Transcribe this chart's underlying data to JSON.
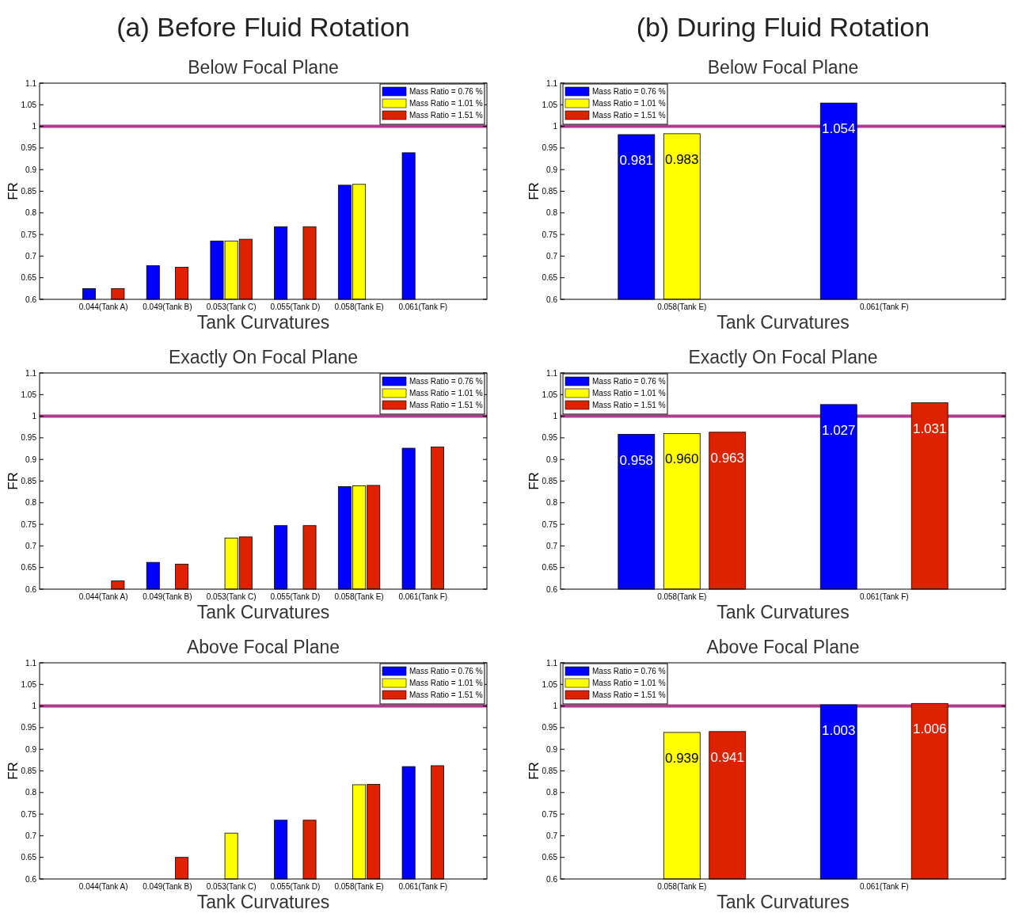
{
  "chart_data": [
    {
      "type": "bar",
      "title": "(a) Before Fluid Rotation",
      "subtitle": "Below Focal Plane",
      "xlabel": "Tank Curvatures",
      "ylabel": "FR",
      "categories": [
        "0.044(Tank A)",
        "0.049(Tank B)",
        "0.053(Tank C)",
        "0.055(Tank D)",
        "0.058(Tank E)",
        "0.061(Tank F)"
      ],
      "series": [
        {
          "name": "Mass Ratio = 0.76 %",
          "color": "#0000ff",
          "values": [
            0.625,
            0.678,
            0.735,
            0.768,
            0.864,
            0.939
          ]
        },
        {
          "name": "Mass Ratio = 1.01 %",
          "color": "#ffff00",
          "values": [
            null,
            null,
            0.735,
            null,
            0.866,
            null
          ]
        },
        {
          "name": "Mass Ratio = 1.51 %",
          "color": "#dd2200",
          "values": [
            0.625,
            0.674,
            0.739,
            0.768,
            null,
            null
          ]
        }
      ],
      "ylim": [
        0.6,
        1.1
      ],
      "yticks": [
        0.6,
        0.65,
        0.7,
        0.75,
        0.8,
        0.85,
        0.9,
        0.95,
        1,
        1.05,
        1.1
      ],
      "grid": false,
      "legend": "top right",
      "ref_lines": [
        {
          "axis": "y",
          "value": 1,
          "color": "#b03a8c"
        }
      ]
    },
    {
      "type": "bar",
      "title": "(b) During Fluid Rotation",
      "subtitle": "Below Focal Plane",
      "xlabel": "Tank Curvatures",
      "ylabel": "FR",
      "categories": [
        "0.058(Tank E)",
        "0.061(Tank F)"
      ],
      "series": [
        {
          "name": "Mass Ratio = 0.76 %",
          "color": "#0000ff",
          "values": [
            0.981,
            1.054
          ]
        },
        {
          "name": "Mass Ratio = 1.01 %",
          "color": "#ffff00",
          "values": [
            0.983,
            null
          ]
        },
        {
          "name": "Mass Ratio = 1.51 %",
          "color": "#dd2200",
          "values": [
            null,
            null
          ]
        }
      ],
      "ylim": [
        0.6,
        1.1
      ],
      "yticks": [
        0.6,
        0.65,
        0.7,
        0.75,
        0.8,
        0.85,
        0.9,
        0.95,
        1,
        1.05,
        1.1
      ],
      "grid": false,
      "legend": "top left",
      "data_labels": true,
      "ref_lines": [
        {
          "axis": "y",
          "value": 1,
          "color": "#b03a8c"
        }
      ]
    },
    {
      "type": "bar",
      "title": "Exactly On Focal Plane",
      "xlabel": "Tank Curvatures",
      "ylabel": "FR",
      "categories": [
        "0.044(Tank A)",
        "0.049(Tank B)",
        "0.053(Tank C)",
        "0.055(Tank D)",
        "0.058(Tank E)",
        "0.061(Tank F)"
      ],
      "series": [
        {
          "name": "Mass Ratio = 0.76 %",
          "color": "#0000ff",
          "values": [
            null,
            0.662,
            null,
            0.747,
            0.837,
            0.926
          ]
        },
        {
          "name": "Mass Ratio = 1.01 %",
          "color": "#ffff00",
          "values": [
            null,
            null,
            0.718,
            null,
            0.839,
            null
          ]
        },
        {
          "name": "Mass Ratio = 1.51 %",
          "color": "#dd2200",
          "values": [
            0.619,
            0.658,
            0.721,
            0.747,
            0.84,
            0.929
          ]
        }
      ],
      "ylim": [
        0.6,
        1.1
      ],
      "yticks": [
        0.6,
        0.65,
        0.7,
        0.75,
        0.8,
        0.85,
        0.9,
        0.95,
        1,
        1.05,
        1.1
      ],
      "grid": false,
      "legend": "top right",
      "ref_lines": [
        {
          "axis": "y",
          "value": 1,
          "color": "#b03a8c"
        }
      ]
    },
    {
      "type": "bar",
      "title": "Exactly On Focal Plane",
      "xlabel": "Tank Curvatures",
      "ylabel": "FR",
      "categories": [
        "0.058(Tank E)",
        "0.061(Tank F)"
      ],
      "series": [
        {
          "name": "Mass Ratio = 0.76 %",
          "color": "#0000ff",
          "values": [
            0.958,
            1.027
          ]
        },
        {
          "name": "Mass Ratio = 1.01 %",
          "color": "#ffff00",
          "values": [
            0.96,
            null
          ]
        },
        {
          "name": "Mass Ratio = 1.51 %",
          "color": "#dd2200",
          "values": [
            0.963,
            1.031
          ]
        }
      ],
      "value_labels": [
        [
          "0.958",
          "1.027"
        ],
        [
          "0.960",
          null
        ],
        [
          "0.963",
          "1.031"
        ]
      ],
      "ylim": [
        0.6,
        1.1
      ],
      "yticks": [
        0.6,
        0.65,
        0.7,
        0.75,
        0.8,
        0.85,
        0.9,
        0.95,
        1,
        1.05,
        1.1
      ],
      "grid": false,
      "legend": "top left",
      "ref_lines": [
        {
          "axis": "y",
          "value": 1,
          "color": "#b03a8c"
        }
      ]
    },
    {
      "type": "bar",
      "title": "Above Focal Plane",
      "xlabel": "Tank Curvatures",
      "ylabel": "FR",
      "categories": [
        "0.044(Tank A)",
        "0.049(Tank B)",
        "0.053(Tank C)",
        "0.055(Tank D)",
        "0.058(Tank E)",
        "0.061(Tank F)"
      ],
      "series": [
        {
          "name": "Mass Ratio = 0.76 %",
          "color": "#0000ff",
          "values": [
            null,
            null,
            null,
            0.736,
            null,
            0.86
          ]
        },
        {
          "name": "Mass Ratio = 1.01 %",
          "color": "#ffff00",
          "values": [
            null,
            null,
            0.706,
            null,
            0.818,
            null
          ]
        },
        {
          "name": "Mass Ratio = 1.51 %",
          "color": "#dd2200",
          "values": [
            null,
            0.65,
            null,
            0.736,
            0.819,
            0.862
          ]
        }
      ],
      "ylim": [
        0.6,
        1.1
      ],
      "yticks": [
        0.6,
        0.65,
        0.7,
        0.75,
        0.8,
        0.85,
        0.9,
        0.95,
        1,
        1.05,
        1.1
      ],
      "grid": false,
      "legend": "top right",
      "ref_lines": [
        {
          "axis": "y",
          "value": 1,
          "color": "#b03a8c"
        }
      ]
    },
    {
      "type": "bar",
      "title": "Above Focal Plane",
      "xlabel": "Tank Curvatures",
      "ylabel": "FR",
      "categories": [
        "0.058(Tank E)",
        "0.061(Tank F)"
      ],
      "series": [
        {
          "name": "Mass Ratio = 0.76 %",
          "color": "#0000ff",
          "values": [
            null,
            1.003
          ]
        },
        {
          "name": "Mass Ratio = 1.01 %",
          "color": "#ffff00",
          "values": [
            0.939,
            null
          ]
        },
        {
          "name": "Mass Ratio = 1.51 %",
          "color": "#dd2200",
          "values": [
            0.941,
            1.006
          ]
        }
      ],
      "ylim": [
        0.6,
        1.1
      ],
      "yticks": [
        0.6,
        0.65,
        0.7,
        0.75,
        0.8,
        0.85,
        0.9,
        0.95,
        1,
        1.05,
        1.1
      ],
      "grid": false,
      "legend": "top left",
      "data_labels": true,
      "ref_lines": [
        {
          "axis": "y",
          "value": 1,
          "color": "#b03a8c"
        }
      ]
    }
  ]
}
